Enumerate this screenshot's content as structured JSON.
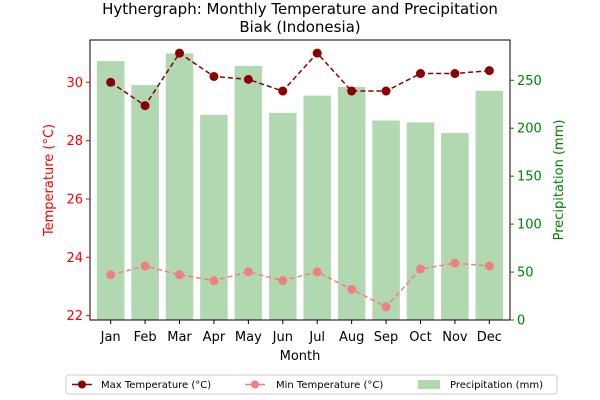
{
  "chart_data": {
    "type": "bar+line",
    "title_line1": "Hythergraph: Monthly Temperature and Precipitation",
    "title_line2": "Biak (Indonesia)",
    "xlabel": "Month",
    "ylabel_left": "Temperature (°C)",
    "ylabel_right": "Precipitation (mm)",
    "categories": [
      "Jan",
      "Feb",
      "Mar",
      "Apr",
      "May",
      "Jun",
      "Jul",
      "Aug",
      "Sep",
      "Oct",
      "Nov",
      "Dec"
    ],
    "ylim_left": [
      21.85,
      31.45
    ],
    "yticks_left": [
      22,
      24,
      26,
      28,
      30
    ],
    "ylim_right": [
      0,
      292
    ],
    "yticks_right": [
      0,
      50,
      100,
      150,
      200,
      250
    ],
    "series": [
      {
        "name": "Max Temperature (°C)",
        "axis": "left",
        "kind": "line",
        "color": "#8b0000",
        "values": [
          30.0,
          29.2,
          31.0,
          30.2,
          30.1,
          29.7,
          31.0,
          29.7,
          29.7,
          30.3,
          30.3,
          30.4
        ]
      },
      {
        "name": "Min Temperature (°C)",
        "axis": "left",
        "kind": "line",
        "color": "#f08080",
        "values": [
          23.4,
          23.7,
          23.4,
          23.2,
          23.5,
          23.2,
          23.5,
          22.9,
          22.3,
          23.6,
          23.8,
          23.7
        ]
      },
      {
        "name": "Precipitation (mm)",
        "axis": "right",
        "kind": "bar",
        "color": "#b2d8b2",
        "values": [
          270,
          245,
          278,
          214,
          265,
          216,
          234,
          243,
          208,
          206,
          195,
          239
        ]
      }
    ],
    "colors": {
      "left_axis": "#ff0000",
      "right_axis": "#008000",
      "max_line": "#8b0000",
      "min_line": "#f08080",
      "bars": "#b2d8b2"
    }
  }
}
